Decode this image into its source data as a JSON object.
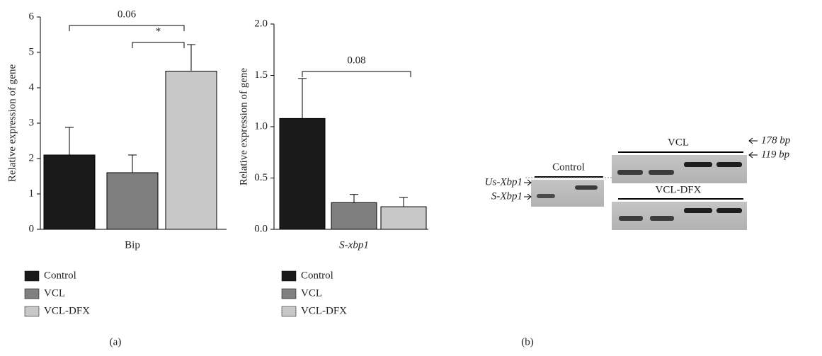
{
  "chart_data": [
    {
      "type": "bar",
      "ylabel": "Relative expression of gene",
      "xlabel": "Bip",
      "categories": [
        "Control",
        "VCL",
        "VCL-DFX"
      ],
      "values": [
        2.1,
        1.6,
        4.47
      ],
      "errors": [
        0.78,
        0.5,
        0.75
      ],
      "colors": [
        "#1a1a1a",
        "#7f7f7f",
        "#c8c8c8"
      ],
      "ylim": [
        0,
        6
      ],
      "yticks": [
        0,
        1,
        2,
        3,
        4,
        5,
        6
      ],
      "annotations": [
        "0.06",
        "*"
      ]
    },
    {
      "type": "bar",
      "ylabel": "Relative expression of gene",
      "xlabel": "S-xbp1",
      "categories": [
        "Control",
        "VCL",
        "VCL-DFX"
      ],
      "values": [
        1.08,
        0.26,
        0.22
      ],
      "errors": [
        0.39,
        0.08,
        0.09
      ],
      "colors": [
        "#1a1a1a",
        "#7f7f7f",
        "#c8c8c8"
      ],
      "ylim": [
        0,
        2
      ],
      "yticks": [
        {
          "value": 0,
          "label": "0.0"
        },
        0.5,
        {
          "value": 1,
          "label": "1.0"
        },
        1.5,
        {
          "value": 2,
          "label": "2.0"
        }
      ],
      "annotations": [
        "0.08"
      ]
    }
  ],
  "gel": {
    "control": "Control",
    "vcl": "VCL",
    "vcl_dfx": "VCL-DFX",
    "us_xbp1": "Us-Xbp1",
    "s_xbp1": "S-Xbp1",
    "bp178": "178 bp",
    "bp119": "119 bp"
  },
  "panel_labels": [
    "(a)",
    "(b)"
  ]
}
